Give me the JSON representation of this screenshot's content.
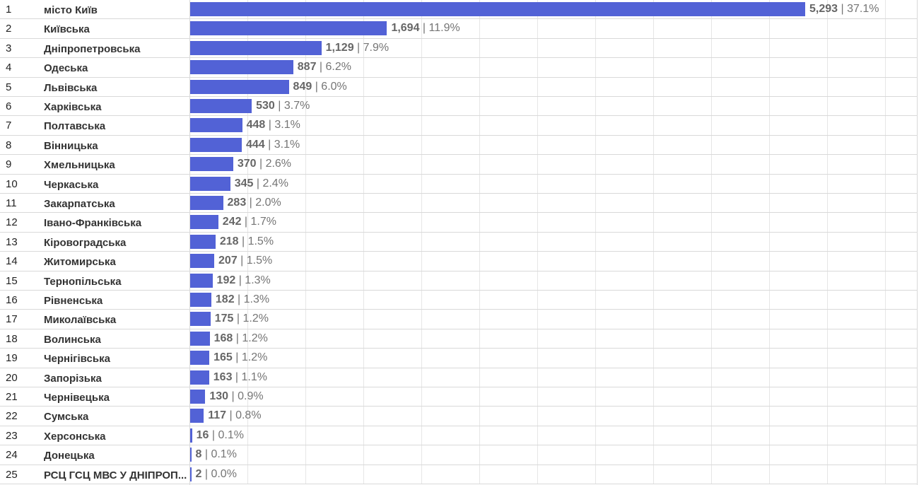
{
  "chart_data": {
    "type": "bar",
    "orientation": "horizontal",
    "bar_color": "#5262d6",
    "max_value": 5293,
    "rows": [
      {
        "rank": "1",
        "label": "місто Київ",
        "value": 5293,
        "value_text": "5,293",
        "pct_text": "37.1%"
      },
      {
        "rank": "2",
        "label": "Київська",
        "value": 1694,
        "value_text": "1,694",
        "pct_text": "11.9%"
      },
      {
        "rank": "3",
        "label": "Дніпропетровська",
        "value": 1129,
        "value_text": "1,129",
        "pct_text": "7.9%"
      },
      {
        "rank": "4",
        "label": "Одеська",
        "value": 887,
        "value_text": "887",
        "pct_text": "6.2%"
      },
      {
        "rank": "5",
        "label": "Львівська",
        "value": 849,
        "value_text": "849",
        "pct_text": "6.0%"
      },
      {
        "rank": "6",
        "label": "Харківська",
        "value": 530,
        "value_text": "530",
        "pct_text": "3.7%"
      },
      {
        "rank": "7",
        "label": "Полтавська",
        "value": 448,
        "value_text": "448",
        "pct_text": "3.1%"
      },
      {
        "rank": "8",
        "label": "Вінницька",
        "value": 444,
        "value_text": "444",
        "pct_text": "3.1%"
      },
      {
        "rank": "9",
        "label": "Хмельницька",
        "value": 370,
        "value_text": "370",
        "pct_text": "2.6%"
      },
      {
        "rank": "10",
        "label": "Черкаська",
        "value": 345,
        "value_text": "345",
        "pct_text": "2.4%"
      },
      {
        "rank": "11",
        "label": "Закарпатська",
        "value": 283,
        "value_text": "283",
        "pct_text": "2.0%"
      },
      {
        "rank": "12",
        "label": "Івано-Франківська",
        "value": 242,
        "value_text": "242",
        "pct_text": "1.7%"
      },
      {
        "rank": "13",
        "label": "Кіровоградська",
        "value": 218,
        "value_text": "218",
        "pct_text": "1.5%"
      },
      {
        "rank": "14",
        "label": "Житомирська",
        "value": 207,
        "value_text": "207",
        "pct_text": "1.5%"
      },
      {
        "rank": "15",
        "label": "Тернопільська",
        "value": 192,
        "value_text": "192",
        "pct_text": "1.3%"
      },
      {
        "rank": "16",
        "label": "Рівненська",
        "value": 182,
        "value_text": "182",
        "pct_text": "1.3%"
      },
      {
        "rank": "17",
        "label": "Миколаївська",
        "value": 175,
        "value_text": "175",
        "pct_text": "1.2%"
      },
      {
        "rank": "18",
        "label": "Волинська",
        "value": 168,
        "value_text": "168",
        "pct_text": "1.2%"
      },
      {
        "rank": "19",
        "label": "Чернігівська",
        "value": 165,
        "value_text": "165",
        "pct_text": "1.2%"
      },
      {
        "rank": "20",
        "label": "Запорізька",
        "value": 163,
        "value_text": "163",
        "pct_text": "1.1%"
      },
      {
        "rank": "21",
        "label": "Чернівецька",
        "value": 130,
        "value_text": "130",
        "pct_text": "0.9%"
      },
      {
        "rank": "22",
        "label": "Сумська",
        "value": 117,
        "value_text": "117",
        "pct_text": "0.8%"
      },
      {
        "rank": "23",
        "label": "Херсонська",
        "value": 16,
        "value_text": "16",
        "pct_text": "0.1%"
      },
      {
        "rank": "24",
        "label": "Донецька",
        "value": 8,
        "value_text": "8",
        "pct_text": "0.1%"
      },
      {
        "rank": "25",
        "label": "РСЦ ГСЦ МВС У ДНІПРОП...",
        "value": 2,
        "value_text": "2",
        "pct_text": "0.0%"
      }
    ]
  }
}
